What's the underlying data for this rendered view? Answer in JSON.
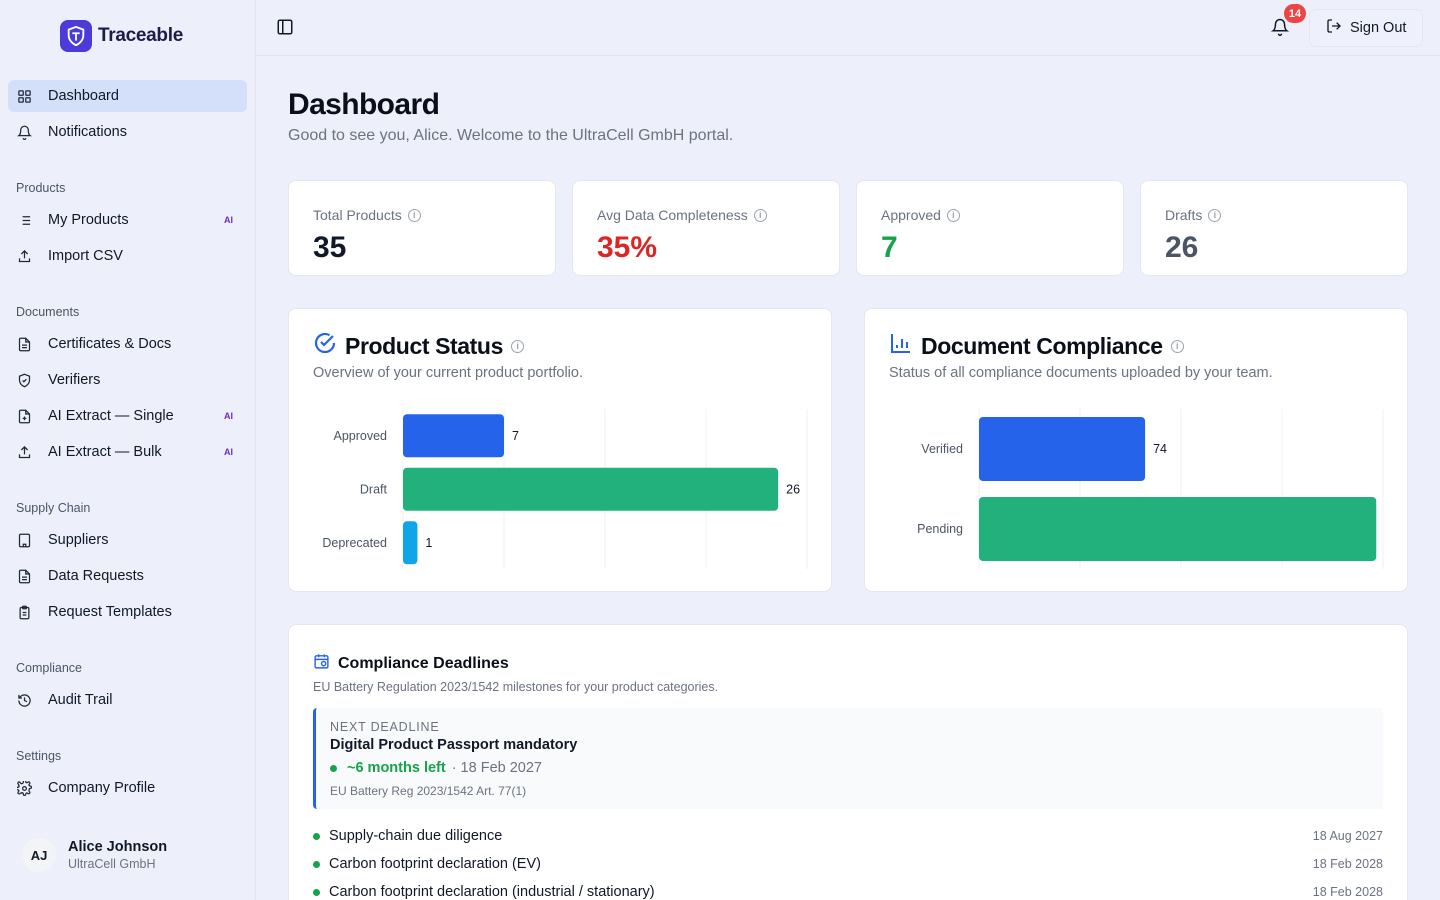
{
  "brand": {
    "name": "Traceable",
    "accent": "#4c3bd9"
  },
  "sidebar": {
    "top_items": [
      {
        "label": "Dashboard",
        "icon": "grid-icon",
        "active": true
      },
      {
        "label": "Notifications",
        "icon": "bell-icon"
      }
    ],
    "sections": [
      {
        "label": "Products",
        "items": [
          {
            "label": "My Products",
            "icon": "list-icon",
            "tag": "AI"
          },
          {
            "label": "Import CSV",
            "icon": "upload-icon"
          }
        ]
      },
      {
        "label": "Documents",
        "items": [
          {
            "label": "Certificates & Docs",
            "icon": "file-icon"
          },
          {
            "label": "Verifiers",
            "icon": "shield-icon"
          },
          {
            "label": "AI Extract — Single",
            "icon": "file-plus-icon",
            "tag": "AI"
          },
          {
            "label": "AI Extract — Bulk",
            "icon": "upload-icon",
            "tag": "AI"
          }
        ]
      },
      {
        "label": "Supply Chain",
        "items": [
          {
            "label": "Suppliers",
            "icon": "building-icon"
          },
          {
            "label": "Data Requests",
            "icon": "file-icon"
          },
          {
            "label": "Request Templates",
            "icon": "clipboard-icon"
          }
        ]
      },
      {
        "label": "Compliance",
        "items": [
          {
            "label": "Audit Trail",
            "icon": "history-icon"
          }
        ]
      },
      {
        "label": "Settings",
        "items": [
          {
            "label": "Company Profile",
            "icon": "gear-icon"
          }
        ]
      }
    ],
    "user": {
      "initials": "AJ",
      "name": "Alice Johnson",
      "company": "UltraCell GmbH"
    }
  },
  "topbar": {
    "notification_count": "14",
    "sign_out_label": "Sign Out"
  },
  "header": {
    "title": "Dashboard",
    "subtitle": "Good to see you, Alice. Welcome to the UltraCell GmbH portal."
  },
  "stats": [
    {
      "label": "Total Products",
      "value": "35",
      "color": "#111827"
    },
    {
      "label": "Avg Data Completeness",
      "value": "35%",
      "color": "#dc2626"
    },
    {
      "label": "Approved",
      "value": "7",
      "color": "#16a34a"
    },
    {
      "label": "Drafts",
      "value": "26",
      "color": "#4b5563"
    }
  ],
  "product_status": {
    "title": "Product Status",
    "subtitle": "Overview of your current product portfolio."
  },
  "document_compliance": {
    "title": "Document Compliance",
    "subtitle": "Status of all compliance documents uploaded by your team."
  },
  "chart_data": [
    {
      "type": "bar",
      "orientation": "horizontal",
      "categories": [
        "Approved",
        "Draft",
        "Deprecated"
      ],
      "values": [
        7,
        26,
        1
      ],
      "colors": [
        "#2563eb",
        "#22b07d",
        "#0ea5e9"
      ],
      "xlim": [
        0,
        28
      ],
      "grid": true
    },
    {
      "type": "bar",
      "orientation": "horizontal",
      "categories": [
        "Verified",
        "Pending"
      ],
      "values": [
        74,
        177
      ],
      "value_labels": [
        "74",
        ""
      ],
      "colors": [
        "#2563eb",
        "#22b07d"
      ],
      "xlim": [
        0,
        180
      ],
      "grid": true
    }
  ],
  "deadlines": {
    "title": "Compliance Deadlines",
    "subtitle": "EU Battery Regulation 2023/1542 milestones for your product categories.",
    "next": {
      "label": "NEXT DEADLINE",
      "name": "Digital Product Passport mandatory",
      "time_left": "~6 months left",
      "date": "· 18 Feb 2027",
      "ref": "EU Battery Reg 2023/1542 Art. 77(1)"
    },
    "items": [
      {
        "name": "Supply-chain due diligence",
        "date": "18 Aug 2027"
      },
      {
        "name": "Carbon footprint declaration (EV)",
        "date": "18 Feb 2028"
      },
      {
        "name": "Carbon footprint declaration (industrial / stationary)",
        "date": "18 Feb 2028"
      }
    ]
  }
}
